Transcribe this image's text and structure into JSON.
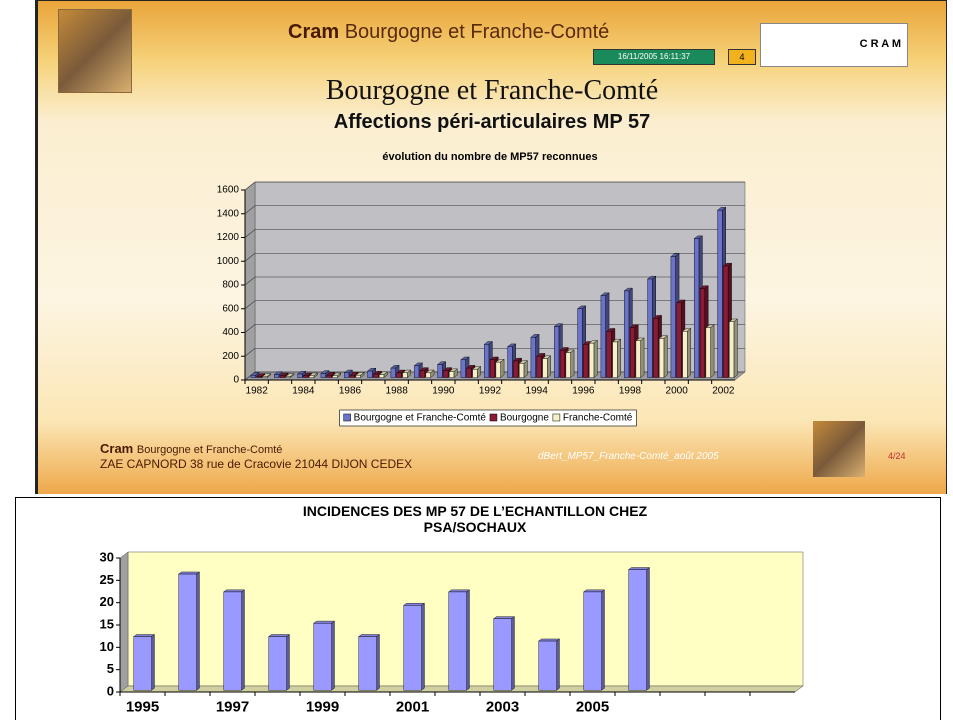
{
  "slide": {
    "brand": "Cram",
    "brand_region": "Bourgogne et Franche-Comté",
    "timestamp": "16/11/2005 16:11:37",
    "counter": "4",
    "logo": "C R A M",
    "heading": "Bourgogne et Franche-Comté",
    "subheading": "Affections péri-articulaires MP 57",
    "footer_brand": "Cram",
    "footer_region": "Bourgogne et Franche-Comté",
    "footer_address": "ZAE CAPNORD 38 rue de Cracovie 21044 DIJON CEDEX",
    "footer_file": "dBert_MP57_Franche-Comté_août 2005",
    "page": "4/24"
  },
  "chart_data": [
    {
      "type": "bar3d",
      "title": "évolution du nombre de MP57 reconnues",
      "categories": [
        "1982",
        null,
        "1984",
        null,
        "1986",
        null,
        "1988",
        null,
        "1990",
        null,
        "1992",
        null,
        "1994",
        null,
        "1996",
        null,
        "1998",
        null,
        "2000",
        null,
        "2002"
      ],
      "series": [
        {
          "name": "Bourgogne et Franche-Comté",
          "color": "#6b74c9",
          "values": [
            20,
            25,
            30,
            35,
            40,
            55,
            80,
            100,
            110,
            150,
            280,
            260,
            340,
            430,
            580,
            690,
            730,
            830,
            1020,
            1170,
            1410
          ]
        },
        {
          "name": "Bourgogne",
          "color": "#8b1a35",
          "values": [
            10,
            15,
            15,
            20,
            20,
            30,
            40,
            60,
            60,
            80,
            150,
            140,
            180,
            230,
            280,
            390,
            420,
            500,
            630,
            750,
            940
          ]
        },
        {
          "name": "Franche-Comté",
          "color": "#f5f0c8",
          "values": [
            10,
            10,
            15,
            15,
            20,
            25,
            40,
            40,
            50,
            70,
            130,
            120,
            160,
            210,
            290,
            300,
            310,
            330,
            390,
            420,
            470
          ]
        }
      ],
      "ylim": [
        0,
        1600
      ],
      "yticks": [
        0,
        200,
        400,
        600,
        800,
        1000,
        1200,
        1400,
        1600
      ],
      "grid": true,
      "legend": "bottom"
    },
    {
      "type": "bar3d",
      "title": "INCIDENCES DES MP 57 DE L’ECHANTILLON CHEZ PSA/SOCHAUX",
      "categories": [
        "1995",
        null,
        "1997",
        null,
        "1999",
        null,
        "2001",
        null,
        "2003",
        null,
        "2005",
        null,
        null,
        null,
        null
      ],
      "series": [
        {
          "color": "#9999ff",
          "values": [
            12,
            26,
            22,
            12,
            15,
            12,
            19,
            22,
            16,
            11,
            22,
            27,
            null,
            null,
            null
          ]
        }
      ],
      "ylim": [
        0,
        30
      ],
      "yticks": [
        0,
        5,
        10,
        15,
        20,
        25,
        30
      ],
      "grid": false
    }
  ]
}
